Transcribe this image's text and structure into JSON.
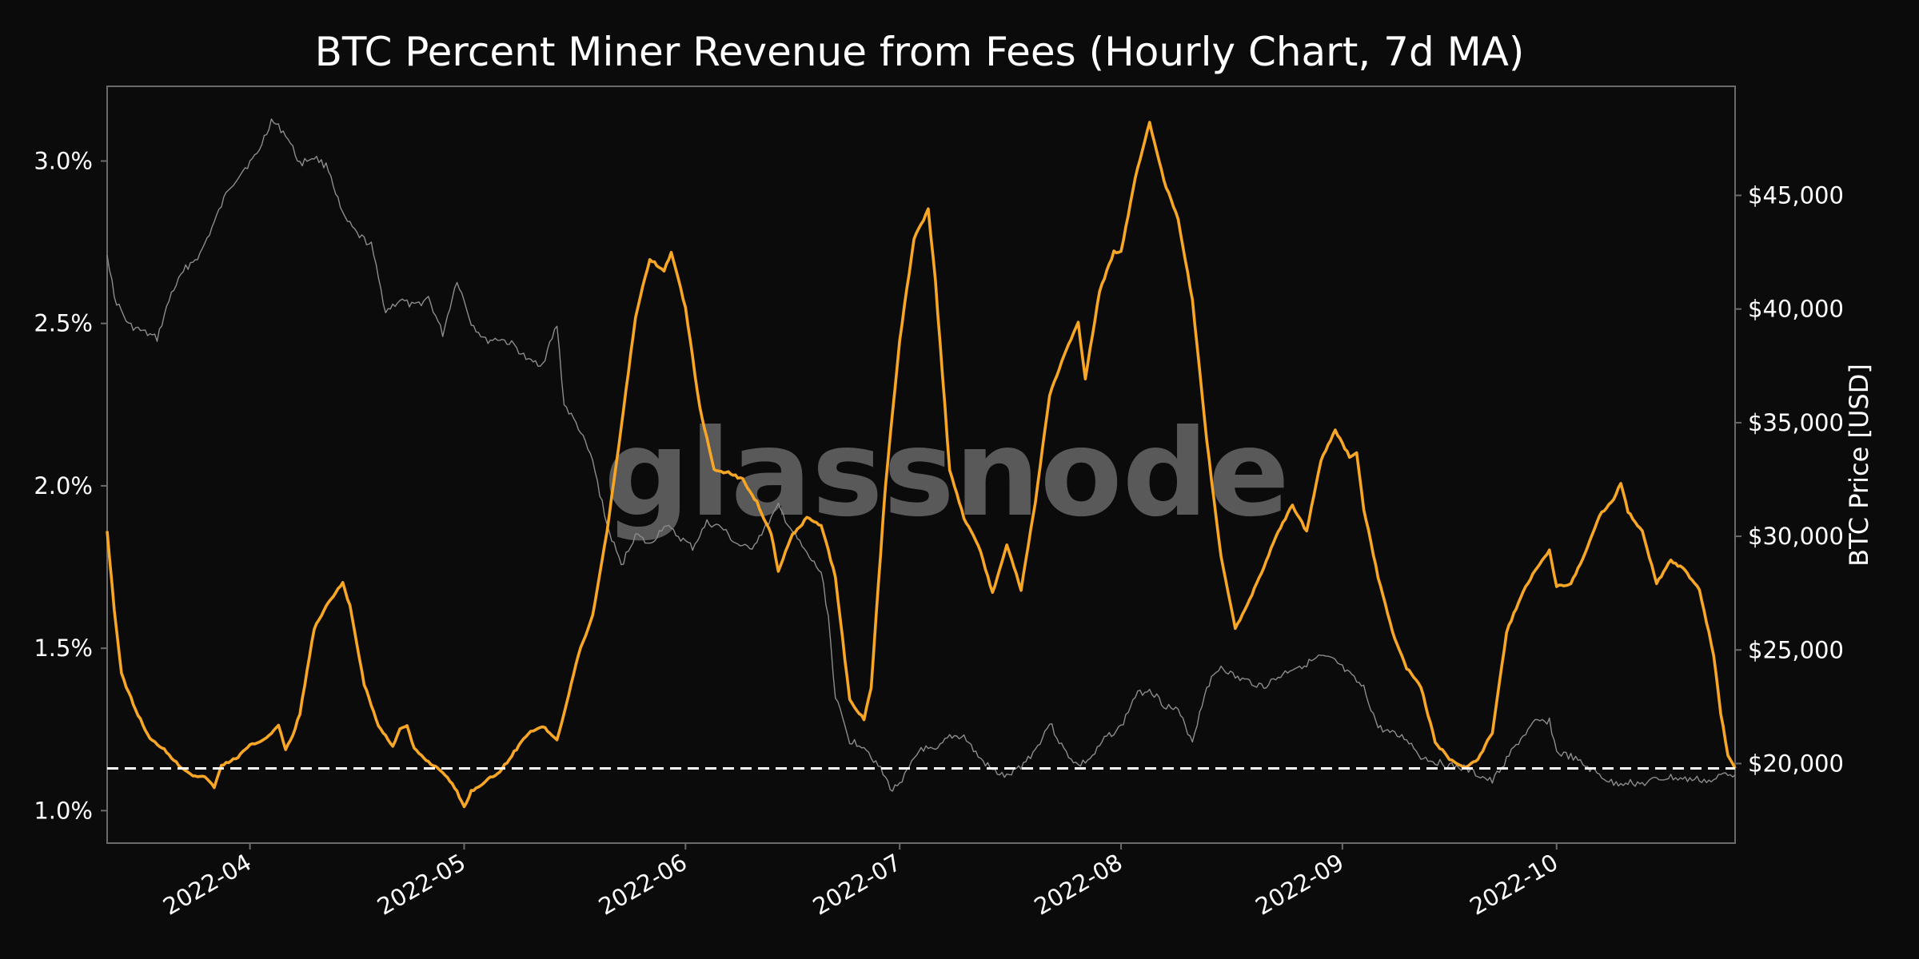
{
  "chart_data": {
    "type": "line",
    "title": "BTC Percent Miner Revenue from Fees (Hourly Chart, 7d MA)",
    "watermark": "glassnode",
    "xlabel": "",
    "ylabel_left": "",
    "ylabel_right": "BTC Price [USD]",
    "x_ticks": [
      "2022-04",
      "2022-05",
      "2022-06",
      "2022-07",
      "2022-08",
      "2022-09",
      "2022-10"
    ],
    "x_tick_dates": [
      "2022-04-01",
      "2022-05-01",
      "2022-06-01",
      "2022-07-01",
      "2022-08-01",
      "2022-09-01",
      "2022-10-01"
    ],
    "xlim": [
      "2022-03-12",
      "2022-10-26"
    ],
    "y_left_ticks": [
      "1.0%",
      "1.5%",
      "2.0%",
      "2.5%",
      "3.0%"
    ],
    "y_left_tick_values": [
      1.0,
      1.5,
      2.0,
      2.5,
      3.0
    ],
    "ylim_left": [
      0.9,
      3.23
    ],
    "y_right_ticks": [
      "$20,000",
      "$25,000",
      "$30,000",
      "$35,000",
      "$40,000",
      "$45,000"
    ],
    "y_right_tick_values": [
      20000,
      25000,
      30000,
      35000,
      40000,
      45000
    ],
    "ylim_right": [
      16500,
      49800
    ],
    "grid": false,
    "colors": {
      "background": "#0b0b0b",
      "fees": "#f7a626",
      "price": "#8c8c8c",
      "reference": "#ffffff",
      "frame": "#6a6a6a",
      "text": "#ffffff"
    },
    "reference_line": {
      "axis": "left",
      "value": 1.13
    },
    "series": [
      {
        "axis": "left",
        "points": [
          [
            "2022-03-12",
            1.86
          ],
          [
            "2022-03-13",
            1.62
          ],
          [
            "2022-03-14",
            1.42
          ],
          [
            "2022-03-16",
            1.31
          ],
          [
            "2022-03-18",
            1.22
          ],
          [
            "2022-03-20",
            1.19
          ],
          [
            "2022-03-22",
            1.14
          ],
          [
            "2022-03-24",
            1.11
          ],
          [
            "2022-03-26",
            1.1
          ],
          [
            "2022-03-27",
            1.07
          ],
          [
            "2022-03-28",
            1.14
          ],
          [
            "2022-03-30",
            1.16
          ],
          [
            "2022-04-01",
            1.2
          ],
          [
            "2022-04-03",
            1.22
          ],
          [
            "2022-04-05",
            1.26
          ],
          [
            "2022-04-06",
            1.19
          ],
          [
            "2022-04-07",
            1.23
          ],
          [
            "2022-04-08",
            1.3
          ],
          [
            "2022-04-10",
            1.56
          ],
          [
            "2022-04-12",
            1.64
          ],
          [
            "2022-04-14",
            1.7
          ],
          [
            "2022-04-15",
            1.63
          ],
          [
            "2022-04-17",
            1.39
          ],
          [
            "2022-04-19",
            1.26
          ],
          [
            "2022-04-21",
            1.2
          ],
          [
            "2022-04-22",
            1.25
          ],
          [
            "2022-04-23",
            1.26
          ],
          [
            "2022-04-24",
            1.19
          ],
          [
            "2022-04-26",
            1.15
          ],
          [
            "2022-04-28",
            1.12
          ],
          [
            "2022-04-30",
            1.06
          ],
          [
            "2022-05-01",
            1.01
          ],
          [
            "2022-05-02",
            1.06
          ],
          [
            "2022-05-04",
            1.09
          ],
          [
            "2022-05-06",
            1.12
          ],
          [
            "2022-05-08",
            1.18
          ],
          [
            "2022-05-10",
            1.24
          ],
          [
            "2022-05-12",
            1.26
          ],
          [
            "2022-05-14",
            1.22
          ],
          [
            "2022-05-15",
            1.3
          ],
          [
            "2022-05-17",
            1.48
          ],
          [
            "2022-05-19",
            1.6
          ],
          [
            "2022-05-21",
            1.86
          ],
          [
            "2022-05-23",
            2.18
          ],
          [
            "2022-05-25",
            2.52
          ],
          [
            "2022-05-27",
            2.7
          ],
          [
            "2022-05-29",
            2.66
          ],
          [
            "2022-05-30",
            2.72
          ],
          [
            "2022-06-01",
            2.55
          ],
          [
            "2022-06-03",
            2.24
          ],
          [
            "2022-06-05",
            2.05
          ],
          [
            "2022-06-07",
            2.04
          ],
          [
            "2022-06-09",
            2.02
          ],
          [
            "2022-06-11",
            1.95
          ],
          [
            "2022-06-13",
            1.85
          ],
          [
            "2022-06-14",
            1.74
          ],
          [
            "2022-06-16",
            1.85
          ],
          [
            "2022-06-18",
            1.9
          ],
          [
            "2022-06-20",
            1.88
          ],
          [
            "2022-06-22",
            1.72
          ],
          [
            "2022-06-24",
            1.34
          ],
          [
            "2022-06-26",
            1.28
          ],
          [
            "2022-06-27",
            1.38
          ],
          [
            "2022-06-29",
            2.0
          ],
          [
            "2022-07-01",
            2.45
          ],
          [
            "2022-07-03",
            2.76
          ],
          [
            "2022-07-05",
            2.85
          ],
          [
            "2022-07-06",
            2.63
          ],
          [
            "2022-07-08",
            2.05
          ],
          [
            "2022-07-10",
            1.9
          ],
          [
            "2022-07-12",
            1.82
          ],
          [
            "2022-07-14",
            1.67
          ],
          [
            "2022-07-16",
            1.82
          ],
          [
            "2022-07-18",
            1.68
          ],
          [
            "2022-07-20",
            1.95
          ],
          [
            "2022-07-22",
            2.28
          ],
          [
            "2022-07-24",
            2.4
          ],
          [
            "2022-07-26",
            2.5
          ],
          [
            "2022-07-27",
            2.33
          ],
          [
            "2022-07-29",
            2.6
          ],
          [
            "2022-07-31",
            2.72
          ],
          [
            "2022-08-01",
            2.72
          ],
          [
            "2022-08-03",
            2.95
          ],
          [
            "2022-08-05",
            3.12
          ],
          [
            "2022-08-07",
            2.94
          ],
          [
            "2022-08-09",
            2.82
          ],
          [
            "2022-08-11",
            2.57
          ],
          [
            "2022-08-13",
            2.14
          ],
          [
            "2022-08-15",
            1.78
          ],
          [
            "2022-08-17",
            1.56
          ],
          [
            "2022-08-19",
            1.65
          ],
          [
            "2022-08-21",
            1.75
          ],
          [
            "2022-08-23",
            1.86
          ],
          [
            "2022-08-25",
            1.94
          ],
          [
            "2022-08-27",
            1.86
          ],
          [
            "2022-08-29",
            2.08
          ],
          [
            "2022-08-31",
            2.17
          ],
          [
            "2022-09-02",
            2.09
          ],
          [
            "2022-09-03",
            2.1
          ],
          [
            "2022-09-04",
            1.93
          ],
          [
            "2022-09-06",
            1.72
          ],
          [
            "2022-09-08",
            1.55
          ],
          [
            "2022-09-10",
            1.44
          ],
          [
            "2022-09-12",
            1.38
          ],
          [
            "2022-09-14",
            1.21
          ],
          [
            "2022-09-16",
            1.16
          ],
          [
            "2022-09-18",
            1.13
          ],
          [
            "2022-09-20",
            1.16
          ],
          [
            "2022-09-22",
            1.24
          ],
          [
            "2022-09-24",
            1.55
          ],
          [
            "2022-09-26",
            1.66
          ],
          [
            "2022-09-28",
            1.74
          ],
          [
            "2022-09-30",
            1.8
          ],
          [
            "2022-10-01",
            1.69
          ],
          [
            "2022-10-03",
            1.7
          ],
          [
            "2022-10-05",
            1.79
          ],
          [
            "2022-10-07",
            1.91
          ],
          [
            "2022-10-09",
            1.96
          ],
          [
            "2022-10-10",
            2.01
          ],
          [
            "2022-10-11",
            1.92
          ],
          [
            "2022-10-13",
            1.86
          ],
          [
            "2022-10-15",
            1.7
          ],
          [
            "2022-10-17",
            1.77
          ],
          [
            "2022-10-19",
            1.74
          ],
          [
            "2022-10-21",
            1.68
          ],
          [
            "2022-10-23",
            1.48
          ],
          [
            "2022-10-24",
            1.3
          ],
          [
            "2022-10-25",
            1.17
          ],
          [
            "2022-10-26",
            1.13
          ]
        ]
      },
      {
        "axis": "right",
        "points": [
          [
            "2022-03-12",
            42500
          ],
          [
            "2022-03-13",
            40500
          ],
          [
            "2022-03-15",
            39300
          ],
          [
            "2022-03-17",
            39000
          ],
          [
            "2022-03-19",
            38700
          ],
          [
            "2022-03-21",
            40700
          ],
          [
            "2022-03-23",
            41800
          ],
          [
            "2022-03-25",
            42400
          ],
          [
            "2022-03-27",
            43800
          ],
          [
            "2022-03-29",
            45300
          ],
          [
            "2022-03-31",
            46100
          ],
          [
            "2022-04-02",
            46800
          ],
          [
            "2022-04-04",
            48300
          ],
          [
            "2022-04-06",
            47700
          ],
          [
            "2022-04-08",
            46400
          ],
          [
            "2022-04-10",
            46700
          ],
          [
            "2022-04-12",
            46200
          ],
          [
            "2022-04-14",
            44100
          ],
          [
            "2022-04-16",
            43300
          ],
          [
            "2022-04-18",
            42800
          ],
          [
            "2022-04-20",
            39900
          ],
          [
            "2022-04-22",
            40400
          ],
          [
            "2022-04-24",
            40100
          ],
          [
            "2022-04-26",
            40500
          ],
          [
            "2022-04-28",
            38900
          ],
          [
            "2022-04-30",
            41300
          ],
          [
            "2022-05-02",
            39400
          ],
          [
            "2022-05-04",
            38600
          ],
          [
            "2022-05-06",
            38700
          ],
          [
            "2022-05-08",
            38400
          ],
          [
            "2022-05-10",
            37700
          ],
          [
            "2022-05-12",
            37600
          ],
          [
            "2022-05-14",
            39300
          ],
          [
            "2022-05-15",
            35800
          ],
          [
            "2022-05-17",
            34800
          ],
          [
            "2022-05-19",
            33300
          ],
          [
            "2022-05-21",
            30500
          ],
          [
            "2022-05-23",
            28700
          ],
          [
            "2022-05-25",
            30100
          ],
          [
            "2022-05-27",
            29600
          ],
          [
            "2022-05-29",
            30500
          ],
          [
            "2022-05-31",
            30000
          ],
          [
            "2022-06-02",
            29500
          ],
          [
            "2022-06-04",
            30600
          ],
          [
            "2022-06-06",
            30400
          ],
          [
            "2022-06-08",
            29700
          ],
          [
            "2022-06-10",
            29400
          ],
          [
            "2022-06-12",
            30300
          ],
          [
            "2022-06-14",
            31300
          ],
          [
            "2022-06-16",
            30200
          ],
          [
            "2022-06-18",
            29200
          ],
          [
            "2022-06-20",
            28400
          ],
          [
            "2022-06-21",
            26500
          ],
          [
            "2022-06-22",
            22900
          ],
          [
            "2022-06-24",
            21000
          ],
          [
            "2022-06-26",
            20800
          ],
          [
            "2022-06-28",
            19900
          ],
          [
            "2022-06-30",
            18800
          ],
          [
            "2022-07-02",
            19600
          ],
          [
            "2022-07-04",
            20700
          ],
          [
            "2022-07-06",
            20500
          ],
          [
            "2022-07-08",
            21200
          ],
          [
            "2022-07-10",
            21200
          ],
          [
            "2022-07-12",
            20300
          ],
          [
            "2022-07-14",
            19700
          ],
          [
            "2022-07-16",
            19400
          ],
          [
            "2022-07-18",
            19900
          ],
          [
            "2022-07-20",
            20600
          ],
          [
            "2022-07-22",
            21800
          ],
          [
            "2022-07-24",
            20600
          ],
          [
            "2022-07-26",
            19900
          ],
          [
            "2022-07-28",
            20300
          ],
          [
            "2022-07-30",
            21200
          ],
          [
            "2022-08-01",
            21600
          ],
          [
            "2022-08-03",
            23000
          ],
          [
            "2022-08-05",
            23300
          ],
          [
            "2022-08-07",
            22600
          ],
          [
            "2022-08-09",
            22300
          ],
          [
            "2022-08-11",
            21000
          ],
          [
            "2022-08-13",
            23400
          ],
          [
            "2022-08-15",
            24300
          ],
          [
            "2022-08-17",
            23800
          ],
          [
            "2022-08-19",
            23600
          ],
          [
            "2022-08-21",
            23400
          ],
          [
            "2022-08-23",
            23800
          ],
          [
            "2022-08-25",
            24200
          ],
          [
            "2022-08-27",
            24400
          ],
          [
            "2022-08-29",
            24700
          ],
          [
            "2022-08-31",
            24500
          ],
          [
            "2022-09-02",
            23900
          ],
          [
            "2022-09-04",
            23300
          ],
          [
            "2022-09-06",
            21600
          ],
          [
            "2022-09-08",
            21300
          ],
          [
            "2022-09-10",
            21100
          ],
          [
            "2022-09-12",
            20300
          ],
          [
            "2022-09-14",
            20100
          ],
          [
            "2022-09-16",
            19900
          ],
          [
            "2022-09-18",
            19800
          ],
          [
            "2022-09-20",
            19500
          ],
          [
            "2022-09-22",
            19200
          ],
          [
            "2022-09-24",
            20200
          ],
          [
            "2022-09-26",
            21100
          ],
          [
            "2022-09-28",
            21800
          ],
          [
            "2022-09-30",
            21900
          ],
          [
            "2022-10-01",
            20500
          ],
          [
            "2022-10-03",
            20300
          ],
          [
            "2022-10-05",
            19900
          ],
          [
            "2022-10-07",
            19500
          ],
          [
            "2022-10-09",
            19100
          ],
          [
            "2022-10-11",
            19200
          ],
          [
            "2022-10-13",
            19100
          ],
          [
            "2022-10-15",
            19300
          ],
          [
            "2022-10-17",
            19400
          ],
          [
            "2022-10-19",
            19300
          ],
          [
            "2022-10-21",
            19300
          ],
          [
            "2022-10-23",
            19200
          ],
          [
            "2022-10-24",
            19500
          ],
          [
            "2022-10-25",
            19600
          ],
          [
            "2022-10-26",
            19500
          ]
        ]
      }
    ]
  }
}
